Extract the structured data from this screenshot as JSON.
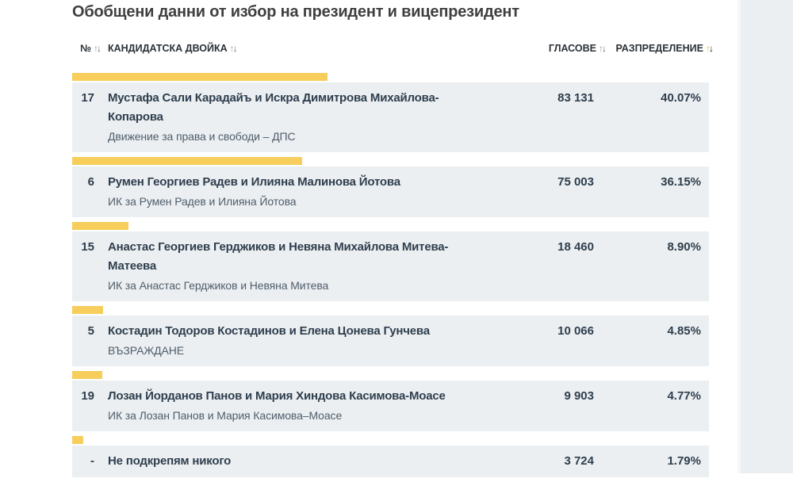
{
  "page": {
    "title": "Обобщени данни от избор на президент и вицепрезидент"
  },
  "colors": {
    "accent_yellow": "#F7CE5B",
    "row_background": "#ECEFF1",
    "sort_active_up": "#F0B32E",
    "sort_active_down": "#16181A",
    "sort_inactive_up": "#9AA1A7",
    "sort_inactive_down": "#656C72"
  },
  "table": {
    "sort_icons": {
      "asc": "↑",
      "desc": "↓"
    },
    "headers": [
      {
        "label": "№",
        "sort": "inactive"
      },
      {
        "label": "КАНДИДАТСКА ДВОЙКА",
        "sort": "inactive"
      },
      {
        "label": "ГЛАСОВЕ",
        "sort": "inactive"
      },
      {
        "label": "РАЗПРЕДЕЛЕНИЕ",
        "sort": "active"
      }
    ],
    "rows": [
      {
        "num": "17",
        "pair": "Мустафа Сали Карадайъ и Искра Димитрова Михайлова-Копарова",
        "list": "Движение за права и свободи – ДПС",
        "votes": "83 131",
        "percent": "40.07%",
        "percent_value": 40.07
      },
      {
        "num": "6",
        "pair": "Румен Георгиев Радев и Илияна Малинова Йотова",
        "list": "ИК за Румен Радев и Илияна Йотова",
        "votes": "75 003",
        "percent": "36.15%",
        "percent_value": 36.15
      },
      {
        "num": "15",
        "pair": "Анастас Георгиев Герджиков и Невяна Михайлова Митева-Матеева",
        "list": "ИК за Анастас Герджиков и Невяна Митева",
        "votes": "18 460",
        "percent": "8.90%",
        "percent_value": 8.9
      },
      {
        "num": "5",
        "pair": "Костадин Тодоров Костадинов и Елена Цонева Гунчева",
        "list": "ВЪЗРАЖДАНЕ",
        "votes": "10 066",
        "percent": "4.85%",
        "percent_value": 4.85
      },
      {
        "num": "19",
        "pair": "Лозан Йорданов Панов и Мария Хиндова Касимова-Моасе",
        "list": "ИК за Лозан Панов и Мария Касимова–Моасе",
        "votes": "9 903",
        "percent": "4.77%",
        "percent_value": 4.77
      },
      {
        "num": "-",
        "pair": "Не подкрепям никого",
        "list": "",
        "votes": "3 724",
        "percent": "1.79%",
        "percent_value": 1.79
      }
    ]
  }
}
